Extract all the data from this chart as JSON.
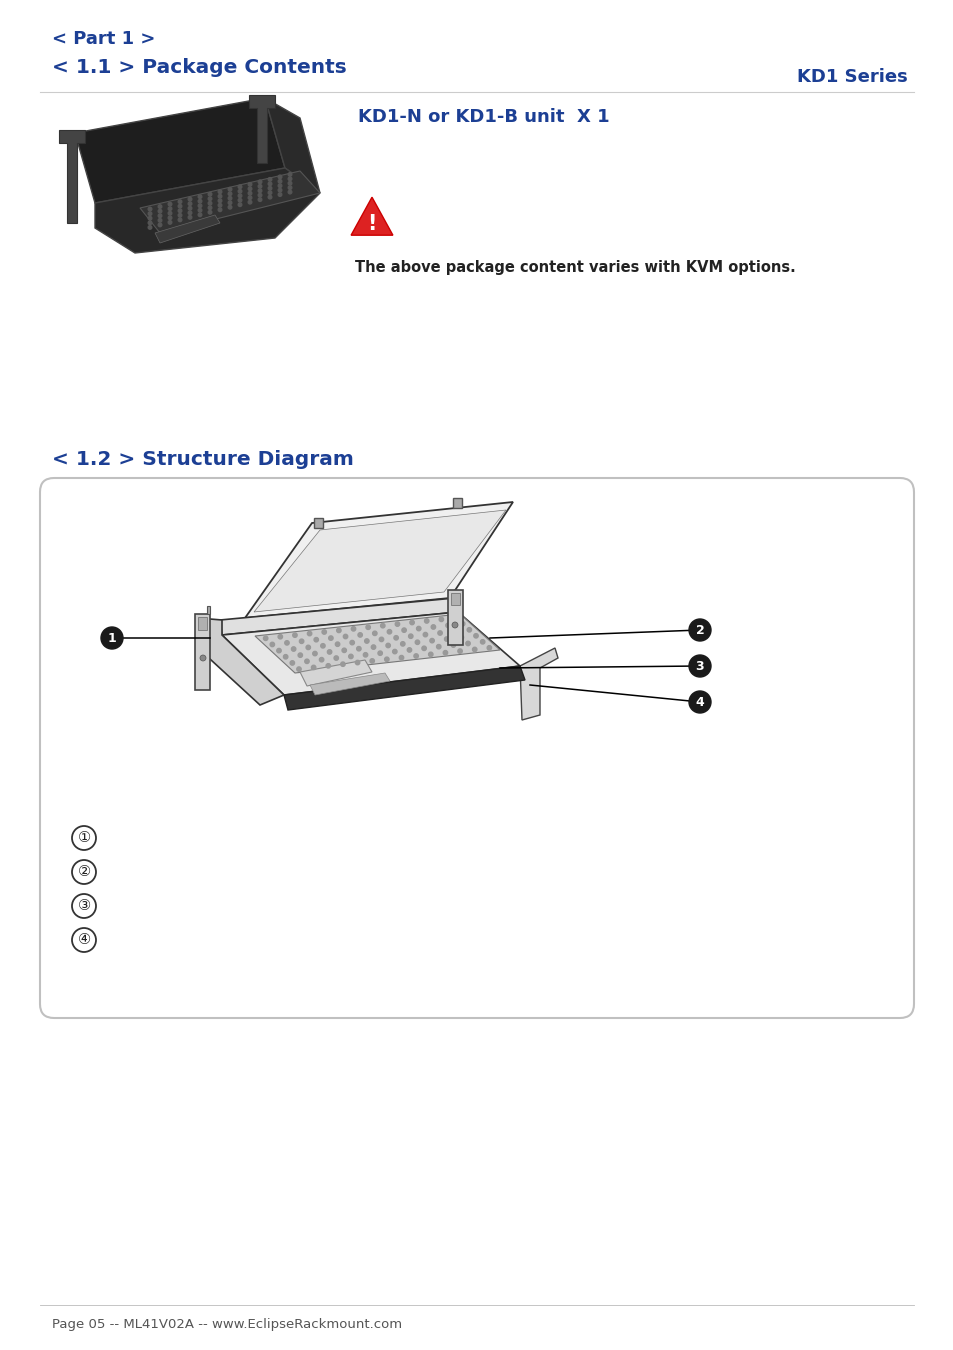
{
  "bg_color": "#ffffff",
  "blue_color": "#1c3f94",
  "text_color": "#222222",
  "part1_line1": "< Part 1 >",
  "part1_line2": "< 1.1 > Package Contents",
  "kd1_series_label": "KD1 Series",
  "unit_label": "KD1-N or KD1-B unit  X 1",
  "warning_text": "The above package content varies with KVM options.",
  "section12_title": "< 1.2 > Structure Diagram",
  "footer_text": "Page 05 -- ML41V02A -- www.EclipseRackmount.com",
  "callout_numbers": [
    "1",
    "2",
    "3",
    "4"
  ],
  "circle_labels": [
    "①",
    "②",
    "③",
    "④"
  ],
  "box_border_color": "#bbbbbb",
  "box_bg_color": "#ffffff"
}
